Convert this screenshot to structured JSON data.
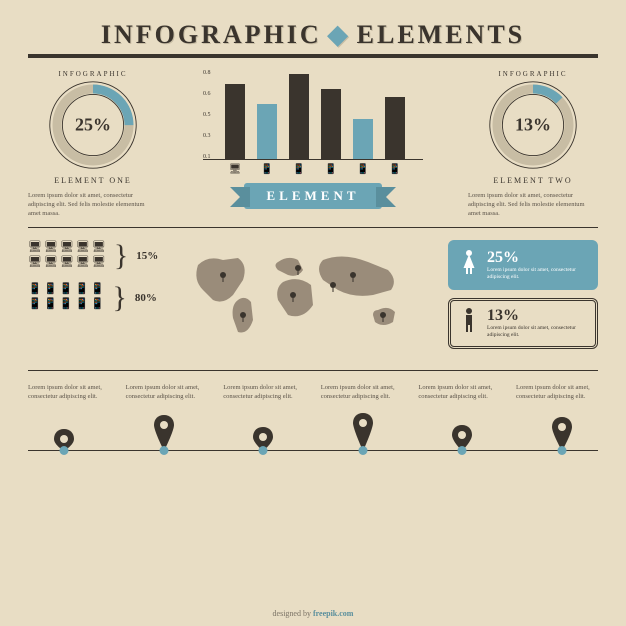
{
  "title_part1": "INFOGRAPHIC",
  "title_part2": "ELEMENTS",
  "colors": {
    "bg": "#e8ddc4",
    "dark": "#3a342d",
    "accent": "#6ba5b5",
    "map": "#9a8c7a"
  },
  "donut_left": {
    "top_label": "INFOGRAPHIC",
    "percent": "25%",
    "value": 25,
    "bot_label": "ELEMENT ONE",
    "lorem": "Lorem ipsum dolor sit amet, consectetur adipiscing elit. Sed felis molestie elementum amet massa."
  },
  "donut_right": {
    "top_label": "INFOGRAPHIC",
    "percent": "13%",
    "value": 13,
    "bot_label": "ELEMENT TWO",
    "lorem": "Lorem ipsum dolor sit amet, consectetur adipiscing elit. Sed felis molestie elementum amet massa."
  },
  "bar_chart": {
    "y_labels": [
      "0.8",
      "0.6",
      "0.5",
      "0.3",
      "0.1"
    ],
    "bars": [
      {
        "h": 75,
        "color": "#3a342d"
      },
      {
        "h": 55,
        "color": "#6ba5b5"
      },
      {
        "h": 85,
        "color": "#3a342d"
      },
      {
        "h": 70,
        "color": "#3a342d"
      },
      {
        "h": 40,
        "color": "#6ba5b5"
      },
      {
        "h": 62,
        "color": "#3a342d"
      }
    ],
    "icons": [
      "🖥",
      "📱",
      "📱",
      "📱",
      "📱",
      "📱"
    ]
  },
  "ribbon_label": "ELEMENT",
  "devices": {
    "monitors": {
      "count": 10,
      "glyph": "🖥",
      "pct": "15%"
    },
    "phones": {
      "count": 10,
      "glyph": "📱",
      "pct": "80%"
    }
  },
  "demographics": {
    "female": {
      "glyph": "🚺",
      "pct": "25%",
      "lorem": "Lorem ipsum dolor sit amet, consectetur adipiscing elit."
    },
    "male": {
      "glyph": "🚹",
      "pct": "13%",
      "lorem": "Lorem ipsum dolor sit amet, consectetur adipiscing elit."
    }
  },
  "timeline": {
    "items": [
      {
        "lorem": "Lorem ipsum dolor sit amet, consectetur adipiscing elit."
      },
      {
        "lorem": "Lorem ipsum dolor sit amet, consectetur adipiscing elit."
      },
      {
        "lorem": "Lorem ipsum dolor sit amet, consectetur adipiscing elit."
      },
      {
        "lorem": "Lorem ipsum dolor sit amet, consectetur adipiscing elit."
      },
      {
        "lorem": "Lorem ipsum dolor sit amet, consectetur adipiscing elit."
      },
      {
        "lorem": "Lorem ipsum dolor sit amet, consectetur adipiscing elit."
      }
    ],
    "pin_heights": [
      28,
      42,
      30,
      44,
      32,
      40
    ]
  },
  "credit_prefix": "designed by ",
  "credit_brand": "freepik.com"
}
